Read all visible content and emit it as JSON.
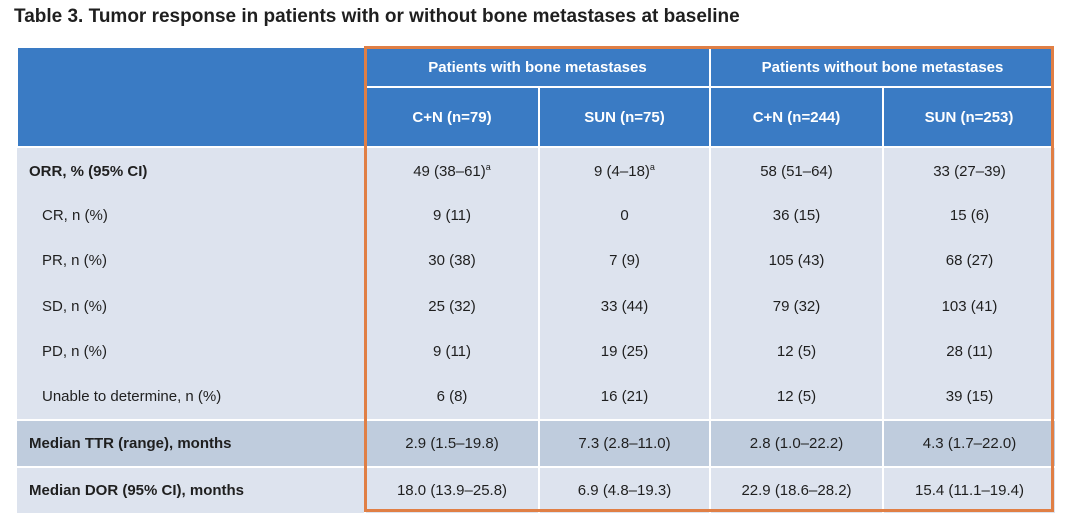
{
  "title": "Table 3. Tumor response in patients with or without bone metastases at baseline",
  "groups": [
    "Patients with bone metastases",
    "Patients without bone metastases"
  ],
  "columns": [
    "C+N (n=79)",
    "SUN (n=75)",
    "C+N (n=244)",
    "SUN (n=253)"
  ],
  "footnote_marker": "a",
  "rows": [
    {
      "label": "ORR, % (95% CI)",
      "values": [
        "49 (38–61)",
        "9 (4–18)",
        "58 (51–64)",
        "33 (27–39)"
      ]
    },
    {
      "label": "CR, n (%)",
      "values": [
        "9 (11)",
        "0",
        "36 (15)",
        "15 (6)"
      ]
    },
    {
      "label": "PR, n (%)",
      "values": [
        "30 (38)",
        "7 (9)",
        "105 (43)",
        "68 (27)"
      ]
    },
    {
      "label": "SD, n (%)",
      "values": [
        "25 (32)",
        "33 (44)",
        "79 (32)",
        "103 (41)"
      ]
    },
    {
      "label": "PD, n (%)",
      "values": [
        "9 (11)",
        "19 (25)",
        "12 (5)",
        "28 (11)"
      ]
    },
    {
      "label": "Unable to determine, n (%)",
      "values": [
        "6 (8)",
        "16 (21)",
        "12 (5)",
        "39 (15)"
      ]
    },
    {
      "label": "Median TTR (range), months",
      "values": [
        "2.9 (1.5–19.8)",
        "7.3 (2.8–11.0)",
        "2.8 (1.0–22.2)",
        "4.3 (1.7–22.0)"
      ]
    },
    {
      "label": "Median DOR (95% CI), months",
      "values": [
        "18.0 (13.9–25.8)",
        "6.9 (4.8–19.3)",
        "22.9 (18.6–28.2)",
        "15.4 (11.1–19.4)"
      ]
    }
  ],
  "colors": {
    "header": "#3a7bc4",
    "row": "#dde3ee",
    "row_dark": "#bfccdd",
    "highlight": "#e07f45"
  }
}
